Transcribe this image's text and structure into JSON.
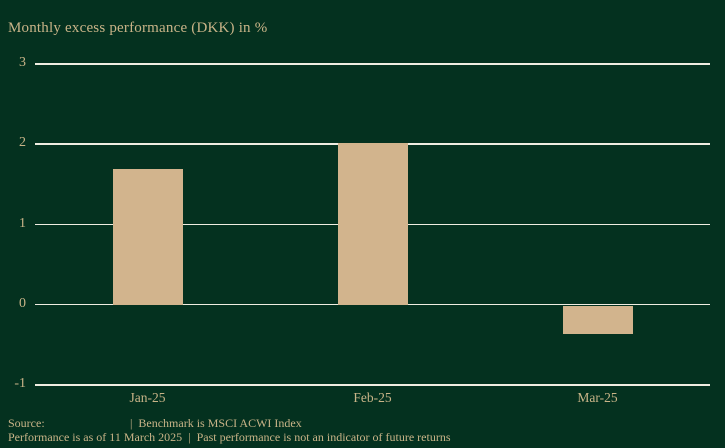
{
  "title": "Monthly excess performance (DKK) in %",
  "colors": {
    "background": "#04311f",
    "bar": "#d2b48d",
    "gridline": "#f0ede1",
    "text": "#c9b488"
  },
  "chart_data": {
    "type": "bar",
    "title": "Monthly excess performance (DKK) in %",
    "categories": [
      "Jan-25",
      "Feb-25",
      "Mar-25"
    ],
    "values": [
      1.68,
      2.0,
      -0.38
    ],
    "xlabel": "",
    "ylabel": "Monthly excess performance (DKK) in %",
    "ylim": [
      -1,
      3
    ],
    "yticks": [
      3,
      2,
      1,
      0,
      -1
    ],
    "grid": true,
    "legend": false,
    "bar_color": "#d2b48d"
  },
  "footer": {
    "source_label": "Source:",
    "benchmark_note": "|  Benchmark is MSCI ACWI Index",
    "line2": "Performance is as of 11 March 2025  |  Past performance is not an indicator of future returns"
  }
}
